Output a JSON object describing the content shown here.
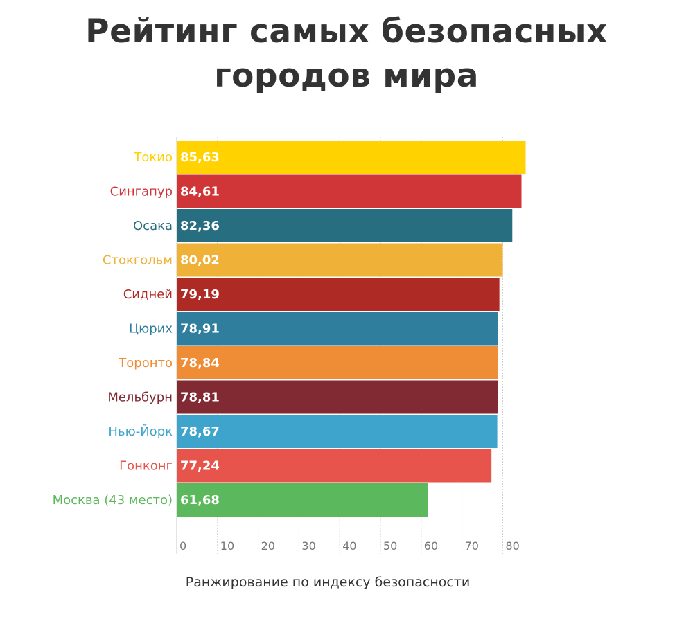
{
  "chart_data": {
    "type": "bar",
    "orientation": "horizontal",
    "title_lines": [
      "Рейтинг самых безопасных",
      "городов мира"
    ],
    "xlabel": "Ранжирование по индексу безопасности",
    "ylabel": "",
    "categories": [
      "Токио",
      "Сингапур",
      "Осака",
      "Стокгольм",
      "Сидней",
      "Цюрих",
      "Торонто",
      "Мельбурн",
      "Нью-Йорк",
      "Гонконг",
      "Москва (43 место)"
    ],
    "values": [
      85.63,
      84.61,
      82.36,
      80.02,
      79.19,
      78.91,
      78.84,
      78.81,
      78.67,
      77.24,
      61.68
    ],
    "value_labels": [
      "85,63",
      "84,61",
      "82,36",
      "80,02",
      "79,19",
      "78,91",
      "78,84",
      "78,81",
      "78,67",
      "77,24",
      "61,68"
    ],
    "colors": [
      "#FFD200",
      "#D03537",
      "#266E80",
      "#EFB137",
      "#AE2A25",
      "#2F7E9E",
      "#EF8C36",
      "#812A33",
      "#3FA4CB",
      "#E7544C",
      "#5CB85C"
    ],
    "xticks": [
      0,
      10,
      20,
      30,
      40,
      50,
      60,
      70,
      80
    ],
    "xtick_labels": [
      "0",
      "10",
      "20",
      "30",
      "40",
      "50",
      "60",
      "70",
      "80"
    ],
    "xlim": [
      0,
      85.63
    ],
    "grid": "vertical dashed",
    "legend": "none"
  }
}
